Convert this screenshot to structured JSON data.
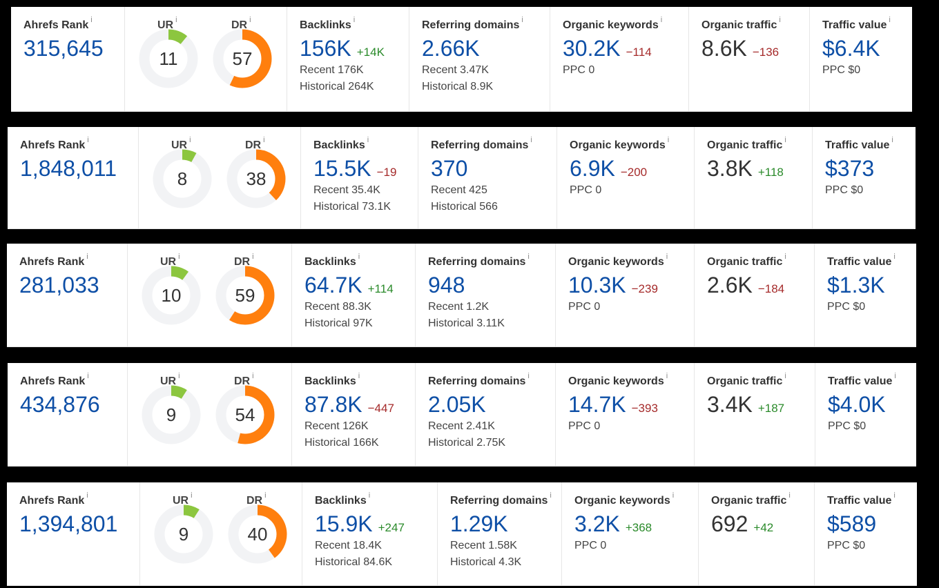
{
  "labels": {
    "rank": "Ahrefs Rank",
    "ur": "UR",
    "dr": "DR",
    "backlinks": "Backlinks",
    "refdomains": "Referring domains",
    "keywords": "Organic keywords",
    "traffic": "Organic traffic",
    "value": "Traffic value",
    "info": "i"
  },
  "colors": {
    "ur_arc": "#8cc63f",
    "dr_arc": "#ff7f0e",
    "ring_track": "#f2f3f5",
    "positive": "#2a8a2a",
    "negative": "#a52a2a",
    "blue_value": "#0e4fa6"
  },
  "panels": [
    {
      "rank": "315,645",
      "ur": 11,
      "dr": 57,
      "backlinks": {
        "value": "156K",
        "delta": "+14K",
        "recent": "Recent 176K",
        "historical": "Historical 264K"
      },
      "refdomains": {
        "value": "2.66K",
        "delta": "",
        "recent": "Recent 3.47K",
        "historical": "Historical 8.9K"
      },
      "keywords": {
        "value": "30.2K",
        "delta": "−114",
        "ppc": "PPC 0"
      },
      "traffic": {
        "value": "8.6K",
        "delta": "−136"
      },
      "value": {
        "value": "$6.4K",
        "ppc": "PPC $0"
      }
    },
    {
      "rank": "1,848,011",
      "ur": 8,
      "dr": 38,
      "backlinks": {
        "value": "15.5K",
        "delta": "−19",
        "recent": "Recent 35.4K",
        "historical": "Historical 73.1K"
      },
      "refdomains": {
        "value": "370",
        "delta": "",
        "recent": "Recent 425",
        "historical": "Historical 566"
      },
      "keywords": {
        "value": "6.9K",
        "delta": "−200",
        "ppc": "PPC 0"
      },
      "traffic": {
        "value": "3.8K",
        "delta": "+118"
      },
      "value": {
        "value": "$373",
        "ppc": "PPC $0"
      }
    },
    {
      "rank": "281,033",
      "ur": 10,
      "dr": 59,
      "backlinks": {
        "value": "64.7K",
        "delta": "+114",
        "recent": "Recent 88.3K",
        "historical": "Historical 97K"
      },
      "refdomains": {
        "value": "948",
        "delta": "",
        "recent": "Recent 1.2K",
        "historical": "Historical 3.11K"
      },
      "keywords": {
        "value": "10.3K",
        "delta": "−239",
        "ppc": "PPC 0"
      },
      "traffic": {
        "value": "2.6K",
        "delta": "−184"
      },
      "value": {
        "value": "$1.3K",
        "ppc": "PPC $0"
      }
    },
    {
      "rank": "434,876",
      "ur": 9,
      "dr": 54,
      "backlinks": {
        "value": "87.8K",
        "delta": "−447",
        "recent": "Recent 126K",
        "historical": "Historical 166K"
      },
      "refdomains": {
        "value": "2.05K",
        "delta": "",
        "recent": "Recent 2.41K",
        "historical": "Historical 2.75K"
      },
      "keywords": {
        "value": "14.7K",
        "delta": "−393",
        "ppc": "PPC 0"
      },
      "traffic": {
        "value": "3.4K",
        "delta": "+187"
      },
      "value": {
        "value": "$4.0K",
        "ppc": "PPC $0"
      }
    },
    {
      "rank": "1,394,801",
      "ur": 9,
      "dr": 40,
      "backlinks": {
        "value": "15.9K",
        "delta": "+247",
        "recent": "Recent 18.4K",
        "historical": "Historical 84.6K"
      },
      "refdomains": {
        "value": "1.29K",
        "delta": "",
        "recent": "Recent 1.58K",
        "historical": "Historical 4.3K"
      },
      "keywords": {
        "value": "3.2K",
        "delta": "+368",
        "ppc": "PPC 0"
      },
      "traffic": {
        "value": "692",
        "delta": "+42"
      },
      "value": {
        "value": "$589",
        "ppc": "PPC $0"
      }
    }
  ]
}
